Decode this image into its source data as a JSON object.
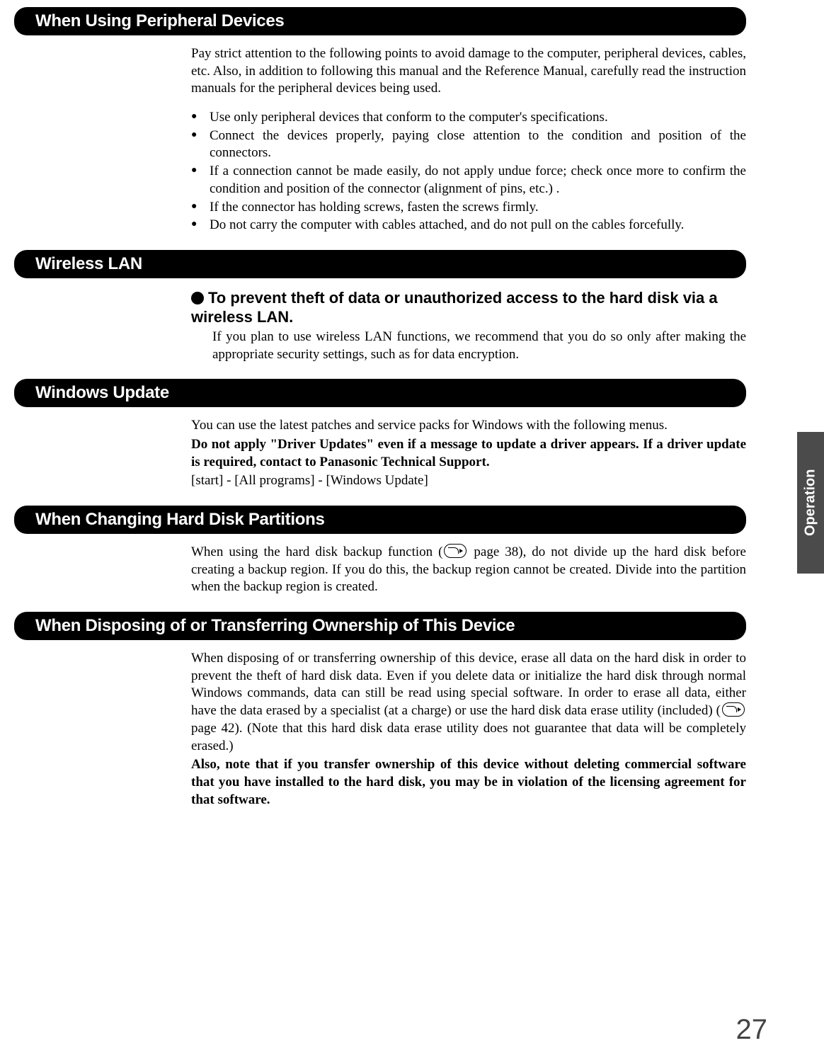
{
  "page_number": "27",
  "side_tab": "Operation",
  "sections": {
    "peripheral": {
      "title": "When Using Peripheral Devices",
      "intro": "Pay strict attention to the following points to avoid damage to the computer, peripheral devices, cables, etc.  Also, in addition to following this manual and the Reference Manual, carefully read the instruction manuals for the peripheral devices being used.",
      "bullets": [
        "Use only peripheral devices that conform to the computer's specifications.",
        "Connect the devices properly, paying close attention to the condition and position of the connectors.",
        "If a connection cannot be made easily, do not apply undue force; check once more to confirm the condition and position of the connector (alignment of pins, etc.) .",
        "If the connector has holding screws, fasten the screws firmly.",
        "Do not carry the computer with cables attached, and do not pull on the cables forcefully."
      ]
    },
    "wlan": {
      "title": "Wireless LAN",
      "sub_title": "To prevent theft of data or unauthorized access to the hard disk via a wireless LAN.",
      "body": "If you plan to use wireless LAN functions, we recommend that you do so only after making the appropriate security settings, such as for data encryption."
    },
    "winupdate": {
      "title": "Windows Update",
      "line1": "You can use the latest patches and service packs for Windows with the following menus.",
      "bold1": "Do not apply \"Driver Updates\" even if a message to update a driver appears. If a driver update is required, contact to Panasonic Technical Support.",
      "line2": "[start] - [All programs] - [Windows Update]"
    },
    "partitions": {
      "title": "When Changing Hard Disk Partitions",
      "body_pre": "When using the hard disk backup function (",
      "ref1": " page 38), do not divide up the hard disk before creating a backup region. If you do this, the backup region cannot be created. Divide into the partition when the backup region is created."
    },
    "dispose": {
      "title": "When Disposing of or Transferring Ownership of This Device",
      "body_pre": "When disposing of or transferring ownership of this device, erase all data on the hard disk in order to prevent the theft of hard disk data. Even if you delete data or initialize the hard disk through normal Windows commands, data can still be read using special software. In order to erase all data, either have the data erased by a specialist (at a charge) or use the hard disk data erase utility (included) (",
      "ref2": " page 42).  (Note that this hard disk data erase utility does not guarantee that data will be completely erased.)",
      "bold1": "Also, note that if you transfer ownership of this device without deleting commercial software that you have installed to the hard disk, you may be in violation of the licensing agreement for that software."
    }
  }
}
